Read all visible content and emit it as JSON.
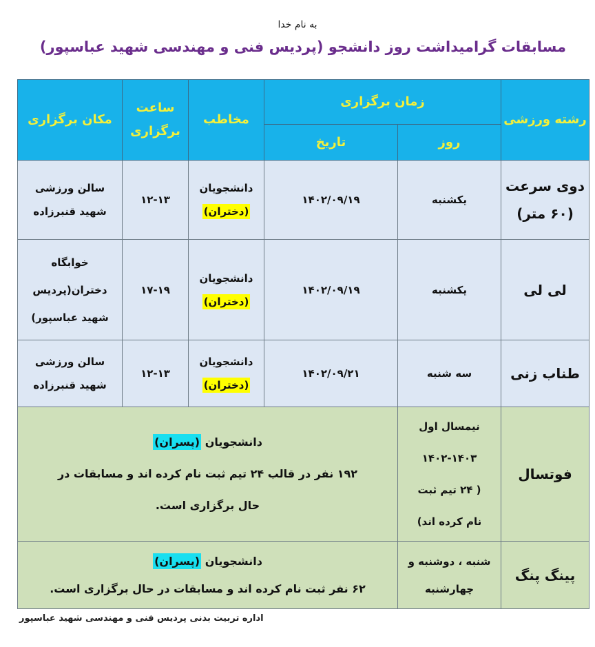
{
  "header": {
    "bismillah": "به نام خدا",
    "title": "مسابقات گرامیداشت  روز دانشجو (پردیس فنی و مهندسی شهید عباسپور)"
  },
  "table": {
    "columns": {
      "sport": "رشته ورزشی",
      "time": "زمان برگزاری",
      "day": "روز",
      "date": "تاریخ",
      "audience": "مخاطب",
      "hours_line1": "ساعت",
      "hours_line2": "برگزاری",
      "location": "مکان برگزاری"
    },
    "rows": [
      {
        "sport_lines": [
          "دوی سرعت",
          "(۶۰ متر)"
        ],
        "day": "یکشنبه",
        "date": "۱۴۰۲/۰۹/۱۹",
        "audience": "دانشجویان",
        "audience_tag": "(دختران)",
        "hours": "۱۲-۱۳",
        "location_lines": [
          "سالن ورزشی",
          "شهید قنبرزاده"
        ]
      },
      {
        "sport_lines": [
          "لی لی"
        ],
        "day": "یکشنبه",
        "date": "۱۴۰۲/۰۹/۱۹",
        "audience": "دانشجویان",
        "audience_tag": "(دختران)",
        "hours": "۱۷-۱۹",
        "location_lines": [
          "خوابگاه",
          "دختران(پردیس",
          "شهید عباسپور)"
        ]
      },
      {
        "sport_lines": [
          "طناب زنی"
        ],
        "day": "سه شنبه",
        "date": "۱۴۰۲/۰۹/۲۱",
        "audience": "دانشجویان",
        "audience_tag": "(دختران)",
        "hours": "۱۲-۱۳",
        "location_lines": [
          "سالن ورزشی",
          "شهید قنبرزاده"
        ]
      }
    ],
    "wide_rows": [
      {
        "sport": "فوتسال",
        "day_lines": [
          "نیمسال اول",
          "۱۴۰۲-۱۴۰۳",
          "( ۲۴  تیم ثبت",
          "نام کرده اند)"
        ],
        "audience": "دانشجویان",
        "audience_tag": "(پسران)",
        "description": "۱۹۲ نفر در قالب ۲۴ تیم ثبت نام کرده اند و مسابقات در حال برگزاری است."
      },
      {
        "sport": "پینگ پنگ",
        "day_lines": [
          "شنبه ، دوشنبه و",
          "چهارشنبه"
        ],
        "audience": "دانشجویان",
        "audience_tag": "(پسران)",
        "description": "۶۲ نفر ثبت نام کرده اند و مسابقات در حال برگزاری است."
      }
    ]
  },
  "footer": "اداره تربیت بدنی پردیس فنی و مهندسی شهید عباسپور",
  "colors": {
    "header_bg": "#18b2ea",
    "header_text": "#f4f03a",
    "title": "#6a2d8c",
    "row_blue": "#dde7f4",
    "row_green": "#cfe0ba",
    "highlight_girls": "#ffff00",
    "highlight_boys": "#19dff0"
  }
}
